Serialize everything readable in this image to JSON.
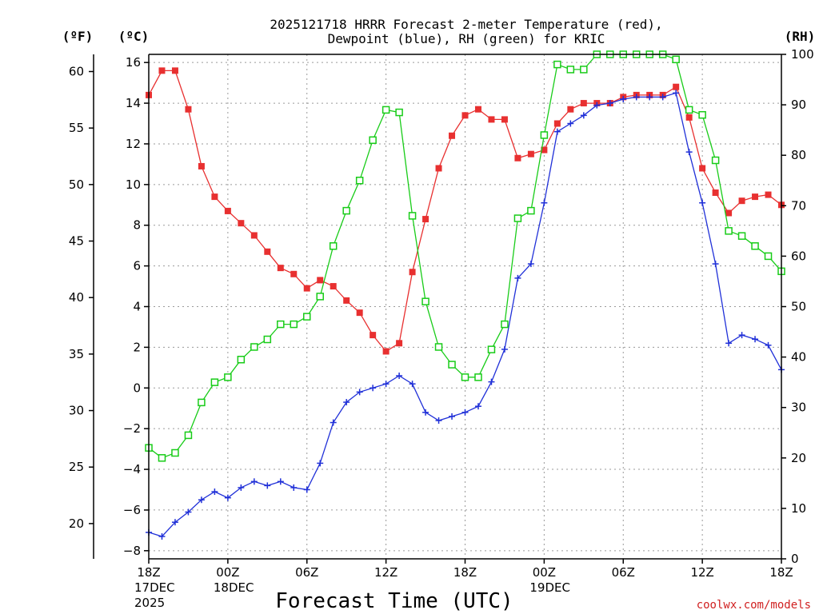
{
  "title_line1": "2025121718 HRRR Forecast 2-meter Temperature (red),",
  "title_line2": "Dewpoint (blue), RH (green) for KRIC",
  "unit_f": "(ºF)",
  "unit_c": "(ºC)",
  "unit_rh": "(RH)",
  "xlabel": "Forecast Time (UTC)",
  "credit": "coolwx.com/models",
  "x_ticks": [
    {
      "h": 0,
      "lines": [
        "18Z",
        "17DEC",
        "2025"
      ]
    },
    {
      "h": 6,
      "lines": [
        "00Z",
        "18DEC"
      ]
    },
    {
      "h": 12,
      "lines": [
        "06Z"
      ]
    },
    {
      "h": 18,
      "lines": [
        "12Z"
      ]
    },
    {
      "h": 24,
      "lines": [
        "18Z"
      ]
    },
    {
      "h": 30,
      "lines": [
        "00Z",
        "19DEC"
      ]
    },
    {
      "h": 36,
      "lines": [
        "06Z"
      ]
    },
    {
      "h": 42,
      "lines": [
        "12Z"
      ]
    },
    {
      "h": 48,
      "lines": [
        "18Z"
      ]
    }
  ],
  "chart_data": {
    "type": "line",
    "x_unit": "forecast hour from 2025-12-17 18Z",
    "x": [
      0,
      1,
      2,
      3,
      4,
      5,
      6,
      7,
      8,
      9,
      10,
      11,
      12,
      13,
      14,
      15,
      16,
      17,
      18,
      19,
      20,
      21,
      22,
      23,
      24,
      25,
      26,
      27,
      28,
      29,
      30,
      31,
      32,
      33,
      34,
      35,
      36,
      37,
      38,
      39,
      40,
      41,
      42,
      43,
      44,
      45,
      46,
      47,
      48
    ],
    "xlim": [
      0,
      48
    ],
    "left_axis_c": {
      "ylim": [
        -8.4,
        16.4
      ],
      "ticks": [
        -8,
        -6,
        -4,
        -2,
        0,
        2,
        4,
        6,
        8,
        10,
        12,
        14,
        16
      ]
    },
    "left_axis_f": {
      "ticks": [
        20,
        25,
        30,
        35,
        40,
        45,
        50,
        55,
        60
      ]
    },
    "right_axis_rh": {
      "ylim": [
        0,
        100
      ],
      "ticks": [
        0,
        10,
        20,
        30,
        40,
        50,
        60,
        70,
        80,
        90,
        100
      ]
    },
    "series": [
      {
        "name": "Temperature",
        "color": "#e83030",
        "marker": "filled-square",
        "axis": "celsius",
        "values": [
          14.4,
          15.6,
          15.6,
          13.7,
          10.9,
          9.4,
          8.7,
          8.1,
          7.5,
          6.7,
          5.9,
          5.6,
          4.9,
          5.3,
          5.0,
          4.3,
          3.7,
          2.6,
          1.8,
          2.2,
          5.7,
          8.3,
          10.8,
          12.4,
          13.4,
          13.7,
          13.2,
          13.2,
          11.3,
          11.5,
          11.7,
          13.0,
          13.7,
          14.0,
          14.0,
          14.0,
          14.3,
          14.4,
          14.4,
          14.4,
          14.8,
          13.3,
          10.8,
          9.6,
          8.6,
          9.2,
          9.4,
          9.5,
          9.0
        ]
      },
      {
        "name": "Dewpoint",
        "color": "#2030d8",
        "marker": "plus",
        "axis": "celsius",
        "values": [
          -7.1,
          -7.3,
          -6.6,
          -6.1,
          -5.5,
          -5.1,
          -5.4,
          -4.9,
          -4.6,
          -4.8,
          -4.6,
          -4.9,
          -5.0,
          -3.7,
          -1.7,
          -0.7,
          -0.2,
          0.0,
          0.2,
          0.6,
          0.2,
          -1.2,
          -1.6,
          -1.4,
          -1.2,
          -0.9,
          0.3,
          1.9,
          5.4,
          6.1,
          9.1,
          12.6,
          13.0,
          13.4,
          13.9,
          14.0,
          14.2,
          14.3,
          14.3,
          14.3,
          14.5,
          11.6,
          9.1,
          6.1,
          2.2,
          2.6,
          2.4,
          2.1,
          0.9
        ]
      },
      {
        "name": "RH",
        "color": "#18cc18",
        "marker": "open-square",
        "axis": "rh",
        "values": [
          22,
          20,
          21,
          24.5,
          31,
          35,
          36,
          39.5,
          42,
          43.5,
          46.5,
          46.5,
          48,
          52,
          62,
          69,
          75,
          83,
          89,
          88.5,
          68,
          51,
          42,
          38.5,
          36,
          36,
          41.5,
          46.5,
          67.5,
          69,
          84,
          98,
          97,
          97,
          100,
          100,
          100,
          100,
          100,
          100,
          99,
          89,
          88,
          79,
          65,
          64,
          62,
          60,
          57
        ]
      }
    ]
  }
}
